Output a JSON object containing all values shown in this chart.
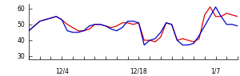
{
  "xlim": [
    0,
    38
  ],
  "ylim": [
    28,
    63
  ],
  "yticks": [
    30,
    40,
    50,
    60
  ],
  "xtick_labels_positions": [
    6,
    13,
    20,
    27,
    34
  ],
  "xtick_labels": [
    "12/4",
    "",
    "12/18",
    "",
    "1/7"
  ],
  "bottom_ticks": [
    0,
    2,
    4,
    6,
    8,
    10,
    12,
    14,
    16,
    18,
    20,
    22,
    24,
    26,
    28,
    30,
    32,
    34,
    36,
    38
  ],
  "red_line": [
    46,
    49,
    52,
    53,
    54,
    55,
    53,
    50,
    48,
    46,
    46,
    47,
    50,
    50,
    49,
    48,
    49,
    51,
    51,
    50,
    51,
    40,
    40,
    39,
    42,
    51,
    50,
    40,
    41,
    40,
    39,
    41,
    56,
    61,
    55,
    55,
    57,
    56,
    55
  ],
  "blue_line": [
    46,
    49,
    52,
    53,
    54,
    55,
    53,
    46,
    45,
    45,
    46,
    49,
    50,
    50,
    49,
    47,
    46,
    48,
    52,
    52,
    51,
    37,
    40,
    41,
    45,
    51,
    50,
    40,
    37,
    37,
    38,
    43,
    49,
    55,
    61,
    55,
    50,
    50,
    49
  ],
  "red_color": "#dd0000",
  "blue_color": "#0000cc",
  "bg_color": "#ffffff",
  "linewidth": 0.9
}
